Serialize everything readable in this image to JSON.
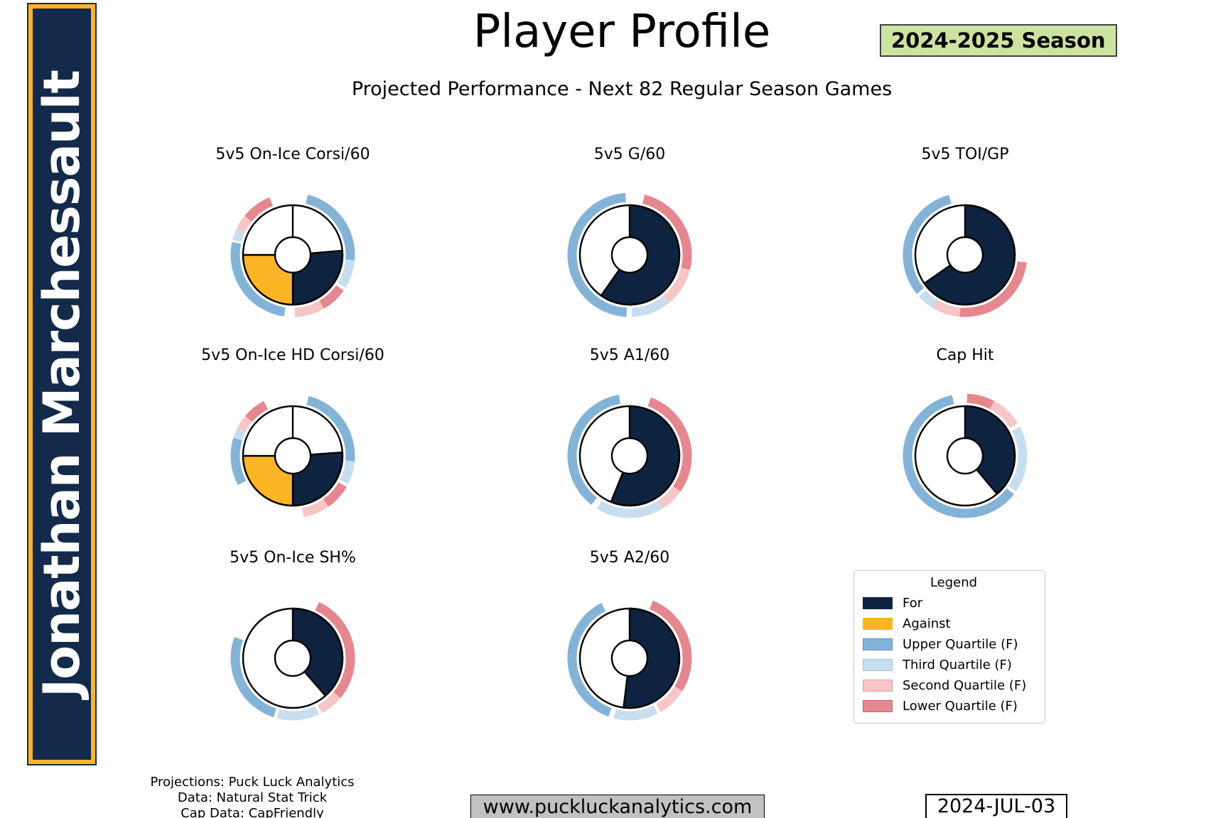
{
  "page": {
    "title": "Player Profile",
    "season_badge": "2024-2025 Season",
    "subtitle": "Projected Performance - Next 82 Regular Season Games"
  },
  "player": {
    "name": "Jonathan Marchessault"
  },
  "palette": {
    "for": "#0e2340",
    "against": "#fcb525",
    "upper": "#84b3d8",
    "third": "#c8deef",
    "second": "#f7c6c7",
    "lower": "#e5878e"
  },
  "legend": {
    "title": "Legend",
    "items": [
      {
        "label": "For",
        "color": "for"
      },
      {
        "label": "Against",
        "color": "against"
      },
      {
        "label": "Upper Quartile (F)",
        "color": "upper",
        "border": "#5b93c4"
      },
      {
        "label": "Third Quartile (F)",
        "color": "third",
        "border": "#9cc3e0"
      },
      {
        "label": "Second Quartile (F)",
        "color": "second",
        "border": "#dfa0a4"
      },
      {
        "label": "Lower Quartile (F)",
        "color": "lower",
        "border": "#c4616a"
      }
    ]
  },
  "footer": {
    "credits": [
      "Projections: Puck Luck Analytics",
      "Data: Natural Stat Trick",
      "Cap Data: CapFriendly"
    ],
    "website": "www.puckluckanalytics.com",
    "date": "2024-JUL-03"
  },
  "chart_data": [
    {
      "type": "donut-gauge",
      "title": "5v5 On-Ice Corsi/60",
      "fills": [
        {
          "color": "for",
          "start": 85,
          "end": 180
        },
        {
          "color": "against",
          "start": 180,
          "end": 270
        }
      ],
      "dividers": [
        0
      ],
      "arcs": [
        {
          "color": "upper",
          "start": 14,
          "end": 95
        },
        {
          "color": "third",
          "start": 95,
          "end": 122
        },
        {
          "color": "lower",
          "start": 125,
          "end": 150
        },
        {
          "color": "second",
          "start": 150,
          "end": 178
        },
        {
          "color": "upper",
          "start": 188,
          "end": 282
        },
        {
          "color": "third",
          "start": 284,
          "end": 295
        },
        {
          "color": "second",
          "start": 295,
          "end": 309
        },
        {
          "color": "lower",
          "start": 309,
          "end": 338
        }
      ]
    },
    {
      "type": "donut-gauge",
      "title": "5v5 G/60",
      "fills": [
        {
          "color": "for",
          "start": 0,
          "end": 215
        }
      ],
      "dividers": [],
      "arcs": [
        {
          "color": "lower",
          "start": 14,
          "end": 104
        },
        {
          "color": "second",
          "start": 104,
          "end": 140
        },
        {
          "color": "third",
          "start": 140,
          "end": 178
        },
        {
          "color": "upper",
          "start": 183,
          "end": 356
        }
      ]
    },
    {
      "type": "donut-gauge",
      "title": "5v5 TOI/GP",
      "fills": [
        {
          "color": "for",
          "start": 0,
          "end": 235
        }
      ],
      "dividers": [],
      "arcs": [
        {
          "color": "lower",
          "start": 97,
          "end": 185
        },
        {
          "color": "second",
          "start": 185,
          "end": 212
        },
        {
          "color": "third",
          "start": 212,
          "end": 228
        },
        {
          "color": "upper",
          "start": 231,
          "end": 345
        }
      ]
    },
    {
      "type": "donut-gauge",
      "title": "5v5 On-Ice HD Corsi/60",
      "fills": [
        {
          "color": "for",
          "start": 86,
          "end": 180
        },
        {
          "color": "against",
          "start": 180,
          "end": 270
        }
      ],
      "dividers": [
        0
      ],
      "arcs": [
        {
          "color": "upper",
          "start": 15,
          "end": 95
        },
        {
          "color": "third",
          "start": 95,
          "end": 117
        },
        {
          "color": "lower",
          "start": 120,
          "end": 145
        },
        {
          "color": "second",
          "start": 145,
          "end": 170
        },
        {
          "color": "upper",
          "start": 242,
          "end": 287
        },
        {
          "color": "third",
          "start": 287,
          "end": 297
        },
        {
          "color": "second",
          "start": 297,
          "end": 310
        },
        {
          "color": "lower",
          "start": 310,
          "end": 332
        }
      ]
    },
    {
      "type": "donut-gauge",
      "title": "5v5 A1/60",
      "fills": [
        {
          "color": "for",
          "start": 0,
          "end": 202
        }
      ],
      "dividers": [],
      "arcs": [
        {
          "color": "lower",
          "start": 20,
          "end": 125
        },
        {
          "color": "second",
          "start": 125,
          "end": 147
        },
        {
          "color": "third",
          "start": 147,
          "end": 212
        },
        {
          "color": "upper",
          "start": 218,
          "end": 350
        }
      ]
    },
    {
      "type": "donut-gauge",
      "title": "Cap Hit",
      "fills": [
        {
          "color": "for",
          "start": 0,
          "end": 140
        }
      ],
      "dividers": [],
      "arcs": [
        {
          "color": "lower",
          "start": 2,
          "end": 28
        },
        {
          "color": "second",
          "start": 28,
          "end": 58
        },
        {
          "color": "third",
          "start": 62,
          "end": 125
        },
        {
          "color": "upper",
          "start": 128,
          "end": 348
        }
      ]
    },
    {
      "type": "donut-gauge",
      "title": "5v5 On-Ice SH%",
      "fills": [
        {
          "color": "for",
          "start": 0,
          "end": 139
        }
      ],
      "dividers": [],
      "arcs": [
        {
          "color": "lower",
          "start": 25,
          "end": 130
        },
        {
          "color": "second",
          "start": 130,
          "end": 152
        },
        {
          "color": "third",
          "start": 155,
          "end": 195
        },
        {
          "color": "upper",
          "start": 198,
          "end": 290
        }
      ]
    },
    {
      "type": "donut-gauge",
      "title": "5v5 A2/60",
      "fills": [
        {
          "color": "for",
          "start": 0,
          "end": 187
        }
      ],
      "dividers": [],
      "arcs": [
        {
          "color": "lower",
          "start": 22,
          "end": 122
        },
        {
          "color": "second",
          "start": 122,
          "end": 150
        },
        {
          "color": "third",
          "start": 153,
          "end": 195
        },
        {
          "color": "upper",
          "start": 200,
          "end": 333
        }
      ]
    }
  ]
}
